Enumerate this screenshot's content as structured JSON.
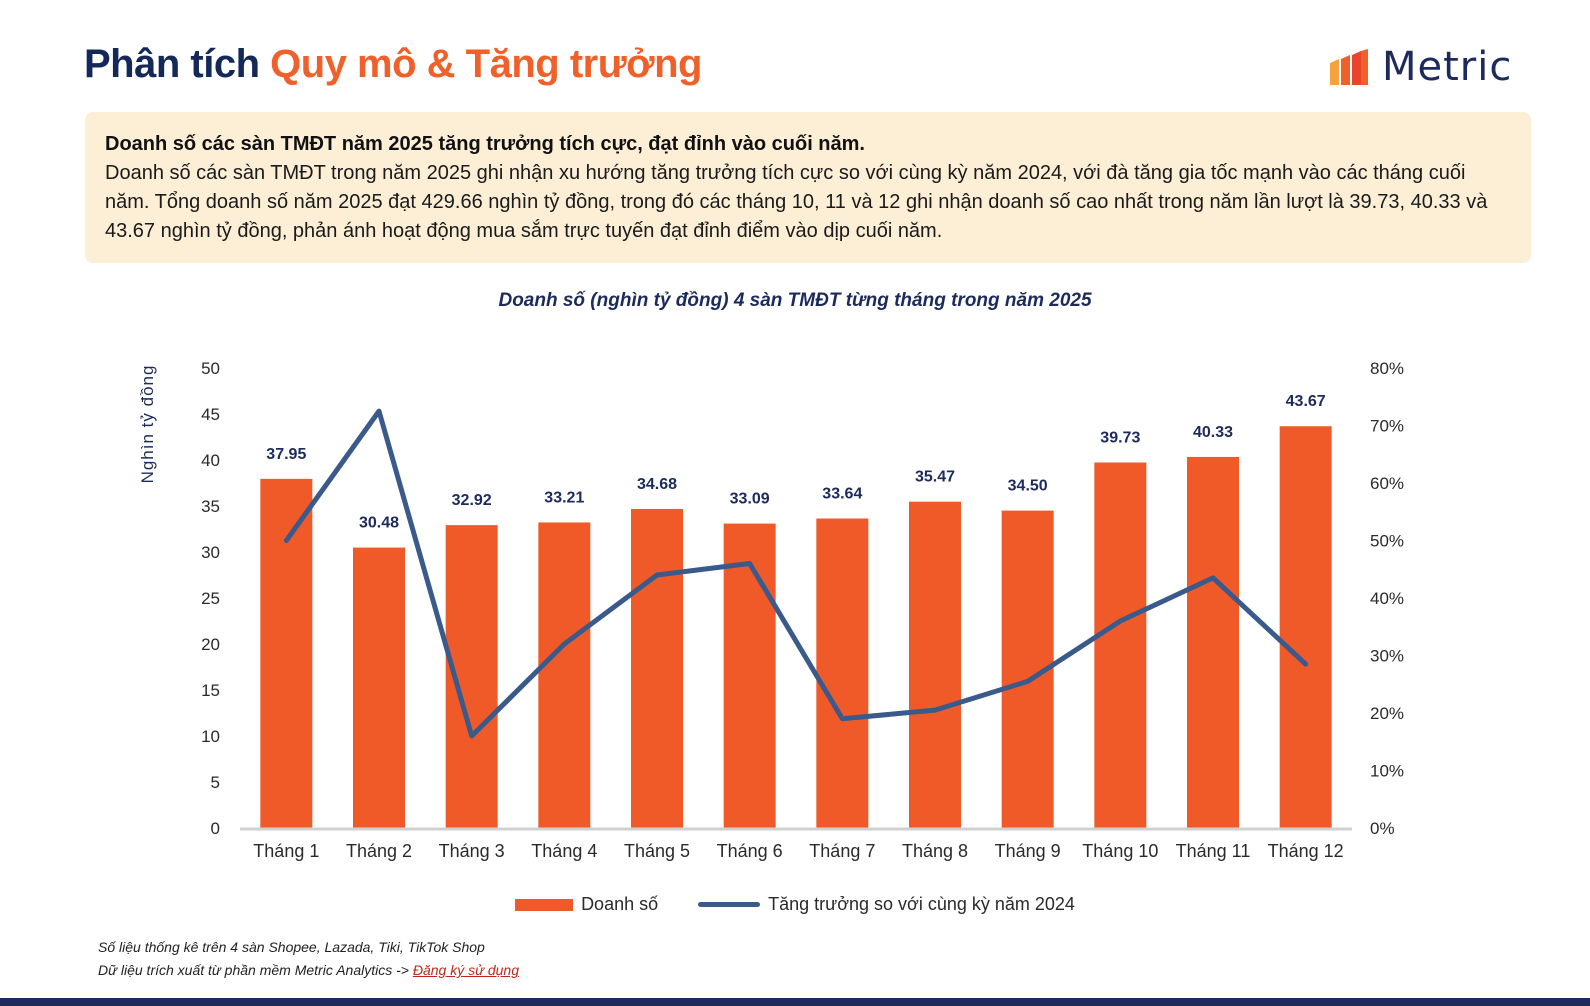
{
  "header": {
    "title_part1": "Phân tích ",
    "title_part2": "Quy mô & Tăng trưởng",
    "brand": "Metric"
  },
  "summary": {
    "title": "Doanh số các sàn TMĐT năm 2025 tăng trưởng tích cực, đạt đỉnh vào cuối năm.",
    "text": "Doanh số các sàn TMĐT trong năm 2025 ghi nhận xu hướng tăng trưởng tích cực so với cùng kỳ năm 2024, với đà tăng gia tốc mạnh vào các tháng cuối năm. Tổng doanh số năm 2025 đạt 429.66 nghìn tỷ đồng, trong đó các tháng 10, 11 và 12 ghi nhận doanh số cao nhất trong năm lần lượt là 39.73, 40.33 và 43.67 nghìn tỷ đồng, phản ánh hoạt động mua sắm trực tuyến đạt đỉnh điểm vào dịp cuối năm."
  },
  "chart_data": {
    "type": "bar",
    "title": "Doanh số (nghìn tỷ đồng) 4 sàn TMĐT từng tháng trong năm 2025",
    "ylabel": "Nghìn tỷ đồng",
    "categories": [
      "Tháng 1",
      "Tháng 2",
      "Tháng 3",
      "Tháng 4",
      "Tháng 5",
      "Tháng 6",
      "Tháng 7",
      "Tháng 8",
      "Tháng 9",
      "Tháng 10",
      "Tháng 11",
      "Tháng 12"
    ],
    "y_ticks": [
      0,
      5,
      10,
      15,
      20,
      25,
      30,
      35,
      40,
      45,
      50
    ],
    "y2_ticks": [
      "0%",
      "10%",
      "20%",
      "30%",
      "40%",
      "50%",
      "60%",
      "70%",
      "80%"
    ],
    "ylim": [
      0,
      50
    ],
    "y2lim": [
      0,
      80
    ],
    "series": [
      {
        "name": "Doanh số",
        "type": "bar",
        "color": "#f05a28",
        "values": [
          37.95,
          30.48,
          32.92,
          33.21,
          34.68,
          33.09,
          33.64,
          35.47,
          34.5,
          39.73,
          40.33,
          43.67
        ],
        "labels": [
          "37.95",
          "30.48",
          "32.92",
          "33.21",
          "34.68",
          "33.09",
          "33.64",
          "35.47",
          "34.50",
          "39.73",
          "40.33",
          "43.67"
        ]
      },
      {
        "name": "Tăng trưởng so với cùng kỳ năm 2024",
        "type": "line",
        "axis": "right",
        "color": "#3a5a8c",
        "values": [
          50.0,
          72.5,
          16.0,
          32.0,
          44.0,
          46.0,
          19.0,
          20.5,
          25.5,
          36.0,
          43.5,
          28.5
        ]
      }
    ],
    "legend": "bottom-center",
    "grid": false
  },
  "notes": {
    "line1": "Số liệu thống kê trên 4 sàn Shopee, Lazada, Tiki, TikTok Shop",
    "line2_prefix": "Dữ liệu trích xuất từ phần mềm Metric Analytics -> ",
    "line2_link": "Đăng ký sử dụng"
  }
}
